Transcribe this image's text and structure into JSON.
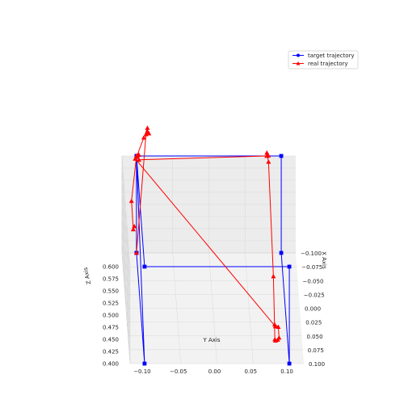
{
  "chart_data": {
    "type": "line",
    "projection": "3d",
    "title": "",
    "xlabel": "X Axis",
    "ylabel": "Y Axis",
    "zlabel": "Z Axis",
    "y_ticks": [
      "−0.10",
      "−0.05",
      "0.00",
      "0.05",
      "0.10"
    ],
    "x_ticks": [
      "−0.100",
      "−0.075",
      "−0.050",
      "−0.025",
      "0.000",
      "0.025",
      "0.050",
      "0.075",
      "0.100"
    ],
    "z_ticks": [
      "0.400",
      "0.425",
      "0.450",
      "0.475",
      "0.500",
      "0.525",
      "0.550",
      "0.575",
      "0.600"
    ],
    "xlim": [
      -0.1,
      0.1
    ],
    "ylim": [
      -0.12,
      0.12
    ],
    "zlim": [
      0.4,
      0.6
    ],
    "grid": true,
    "legend": "top-right",
    "series": [
      {
        "name": "target trajectory",
        "color": "#0000ff",
        "marker": "square",
        "points": [
          {
            "x": -0.1,
            "y": -0.1,
            "z": 0.4
          },
          {
            "x": -0.1,
            "y": -0.1,
            "z": 0.6
          },
          {
            "x": 0.1,
            "y": -0.1,
            "z": 0.6
          },
          {
            "x": 0.1,
            "y": 0.1,
            "z": 0.6
          },
          {
            "x": 0.1,
            "y": 0.1,
            "z": 0.4
          },
          {
            "x": -0.1,
            "y": 0.1,
            "z": 0.4
          },
          {
            "x": -0.1,
            "y": 0.1,
            "z": 0.6
          },
          {
            "x": -0.1,
            "y": -0.1,
            "z": 0.6
          },
          {
            "x": 0.1,
            "y": -0.1,
            "z": 0.4
          },
          {
            "x": -0.1,
            "y": -0.1,
            "z": 0.4
          }
        ]
      },
      {
        "name": "real trajectory",
        "color": "#ff0000",
        "marker": "triangle",
        "points": [
          {
            "x": -0.1,
            "y": -0.103,
            "z": 0.455
          },
          {
            "x": -0.09,
            "y": -0.105,
            "z": 0.46
          },
          {
            "x": -0.08,
            "y": -0.108,
            "z": 0.53
          },
          {
            "x": -0.1,
            "y": -0.1,
            "z": 0.6
          },
          {
            "x": -0.098,
            "y": -0.099,
            "z": 0.603
          },
          {
            "x": -0.095,
            "y": -0.1,
            "z": 0.604
          },
          {
            "x": -0.096,
            "y": -0.097,
            "z": 0.607
          },
          {
            "x": -0.093,
            "y": -0.097,
            "z": 0.6
          },
          {
            "x": -0.1,
            "y": 0.08,
            "z": 0.6
          },
          {
            "x": -0.098,
            "y": 0.082,
            "z": 0.603
          },
          {
            "x": -0.097,
            "y": 0.08,
            "z": 0.61
          },
          {
            "x": -0.093,
            "y": 0.082,
            "z": 0.596
          },
          {
            "x": 0.1,
            "y": 0.078,
            "z": 0.58
          },
          {
            "x": 0.1,
            "y": 0.08,
            "z": 0.45
          },
          {
            "x": 0.098,
            "y": 0.081,
            "z": 0.445
          },
          {
            "x": 0.099,
            "y": 0.084,
            "z": 0.448
          },
          {
            "x": 0.097,
            "y": 0.086,
            "z": 0.45
          },
          {
            "x": 0.095,
            "y": 0.085,
            "z": 0.47
          },
          {
            "x": 0.095,
            "y": 0.08,
            "z": 0.475
          },
          {
            "x": 0.094,
            "y": 0.081,
            "z": 0.47
          },
          {
            "x": -0.095,
            "y": -0.102,
            "z": 0.6
          },
          {
            "x": -0.096,
            "y": -0.1,
            "z": 0.603
          },
          {
            "x": -0.098,
            "y": -0.09,
            "z": 0.64
          },
          {
            "x": -0.098,
            "y": -0.085,
            "z": 0.66
          },
          {
            "x": -0.096,
            "y": -0.085,
            "z": 0.655
          },
          {
            "x": -0.097,
            "y": -0.083,
            "z": 0.65
          },
          {
            "x": -0.097,
            "y": -0.087,
            "z": 0.648
          },
          {
            "x": -0.1,
            "y": -0.1,
            "z": 0.4
          }
        ]
      }
    ]
  }
}
